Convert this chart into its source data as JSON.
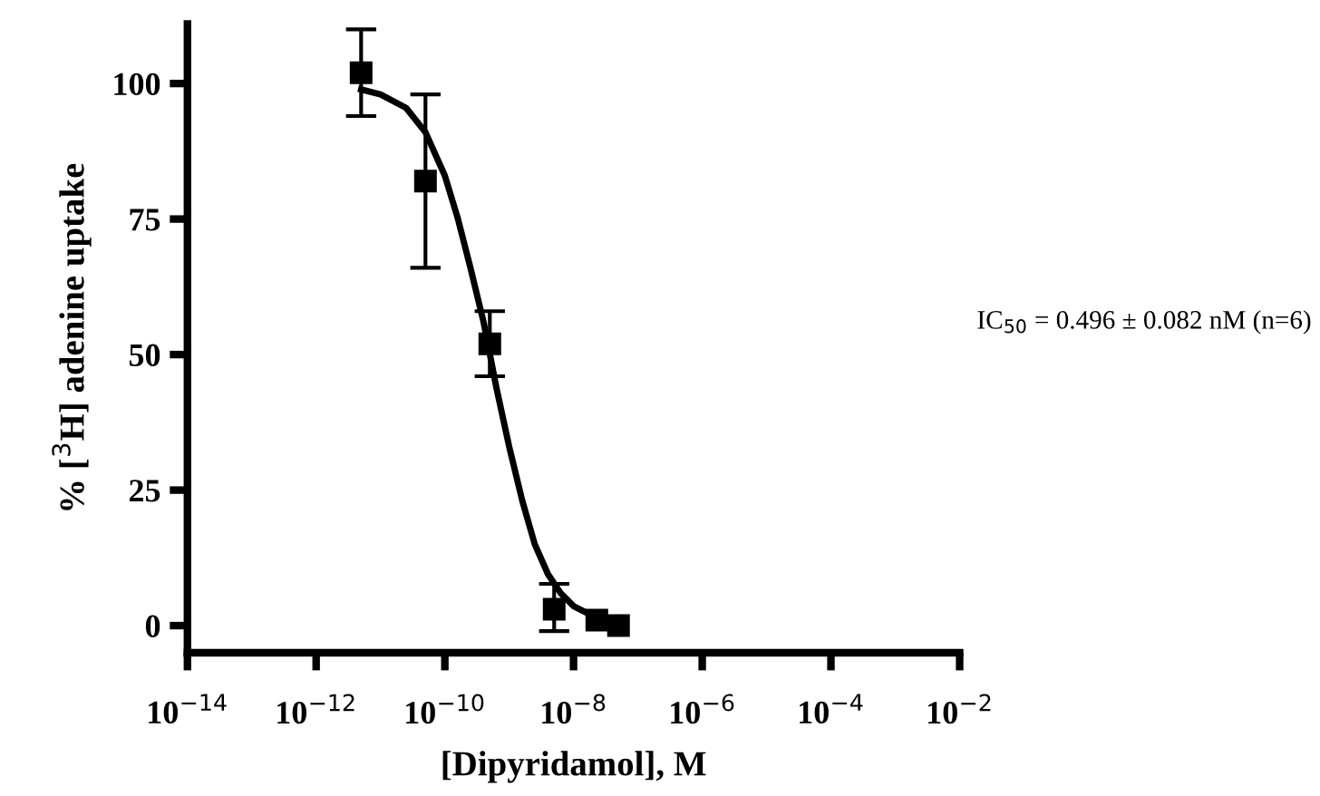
{
  "chart_data": {
    "type": "scatter",
    "xlabel": "[Dipyridamol], M",
    "ylabel": "% [$^{3}$H] adenine uptake",
    "log": "x",
    "xlim": [
      1e-14,
      0.01
    ],
    "xticks": [
      {
        "value": 1e-14,
        "label": "10$^{−14}$"
      },
      {
        "value": 1e-12,
        "label": "10$^{−12}$"
      },
      {
        "value": 1e-10,
        "label": "10$^{−10}$"
      },
      {
        "value": 1e-08,
        "label": "10$^{−8}$"
      },
      {
        "value": 1e-06,
        "label": "10$^{−6}$"
      },
      {
        "value": 0.0001,
        "label": "10$^{−4}$"
      },
      {
        "value": 0.01,
        "label": "10$^{−2}$"
      }
    ],
    "ylim": [
      -5,
      111
    ],
    "yticks": [
      0,
      25,
      50,
      75,
      100
    ],
    "grid": false,
    "marker": "square",
    "annotations": [
      "IC$_{50}$ = 0.496 ± 0.082 nM (n=6)"
    ],
    "series": [
      {
        "color": "#000000",
        "x": [
          5e-12,
          5e-11,
          5e-10,
          5e-09,
          2.3e-08,
          5e-08
        ],
        "values": [
          102,
          82,
          52,
          3,
          1,
          0
        ],
        "errors": [
          [
            94,
            110
          ],
          [
            66,
            98
          ],
          [
            46,
            58
          ],
          [
            -1,
            7.7
          ],
          null,
          null
        ]
      },
      {
        "type": "line",
        "color": "#000000",
        "line_style": "solid",
        "marker": "none",
        "x": [
          5e-12,
          1e-11,
          2.5e-11,
          5e-11,
          1e-10,
          1.6e-10,
          2.5e-10,
          4e-10,
          6.3e-10,
          1e-09,
          1.6e-09,
          2.5e-09,
          4e-09,
          6.3e-09,
          1e-08,
          2e-08,
          5e-08
        ],
        "values": [
          98.9,
          98,
          95.5,
          91,
          83,
          75,
          66,
          56,
          44,
          33,
          23,
          15,
          9.5,
          6,
          3.6,
          1.8,
          0.7
        ]
      }
    ]
  }
}
